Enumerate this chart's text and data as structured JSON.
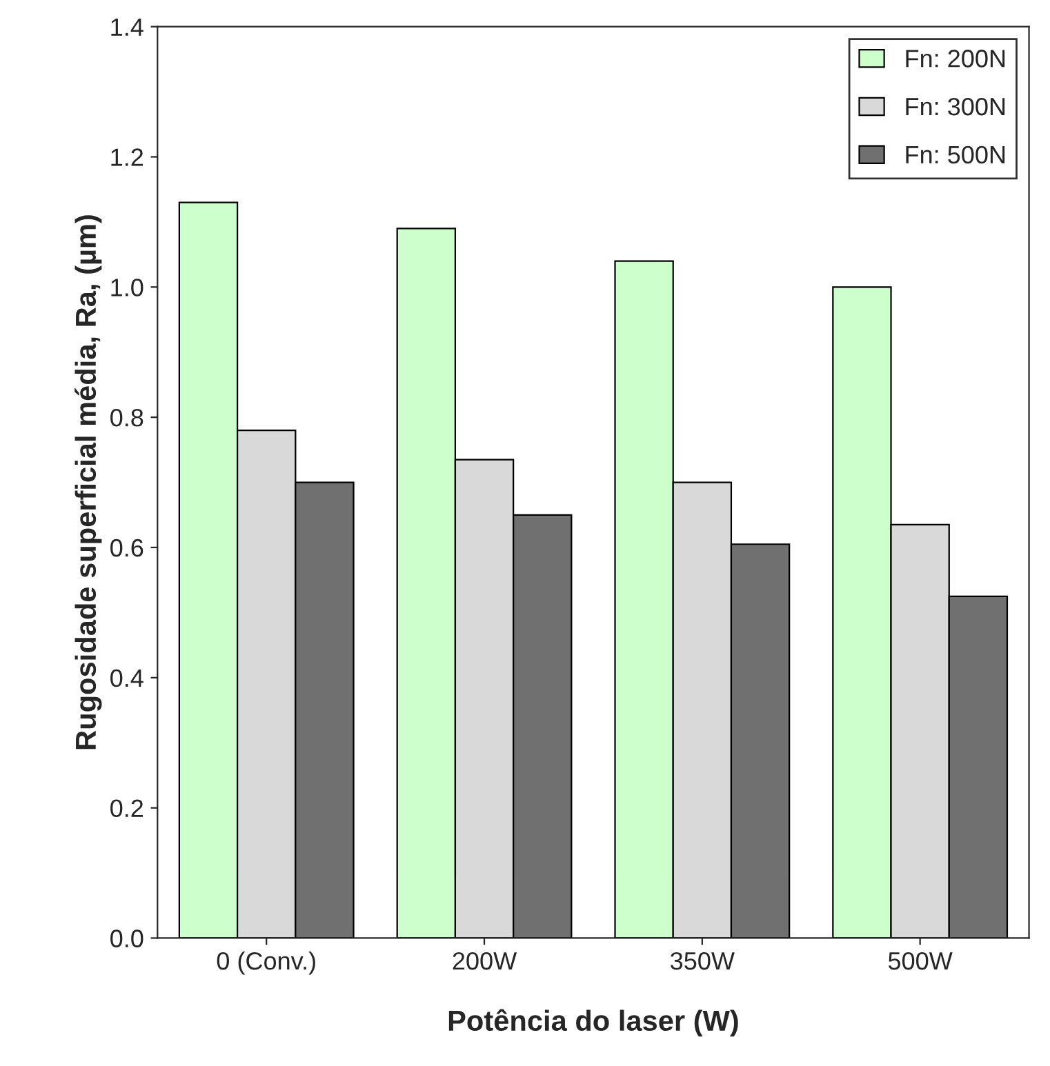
{
  "chart_data": {
    "type": "bar",
    "xlabel": "Potência do laser (W)",
    "ylabel": "Rugosidade superficial média, Ra, (µm)",
    "categories": [
      "0 (Conv.)",
      "200W",
      "350W",
      "500W"
    ],
    "series": [
      {
        "name": "Fn: 200N",
        "color": "#ccffcc",
        "values": [
          1.13,
          1.09,
          1.04,
          1.0
        ]
      },
      {
        "name": "Fn: 300N",
        "color": "#d9d9d9",
        "values": [
          0.78,
          0.735,
          0.7,
          0.635
        ]
      },
      {
        "name": "Fn: 500N",
        "color": "#707070",
        "values": [
          0.7,
          0.65,
          0.605,
          0.525
        ]
      }
    ],
    "ylim": [
      0,
      1.4
    ],
    "yticks": [
      {
        "value": 0,
        "label": "0.0"
      },
      {
        "value": 0.2,
        "label": "0.2"
      },
      {
        "value": 0.4,
        "label": "0.4"
      },
      {
        "value": 0.6,
        "label": "0.6"
      },
      {
        "value": 0.8,
        "label": "0.8"
      },
      {
        "value": 1.0,
        "label": "1.0"
      },
      {
        "value": 1.2,
        "label": "1.2"
      },
      {
        "value": 1.4,
        "label": "1.4"
      }
    ],
    "grid": false,
    "legend": "top right"
  }
}
